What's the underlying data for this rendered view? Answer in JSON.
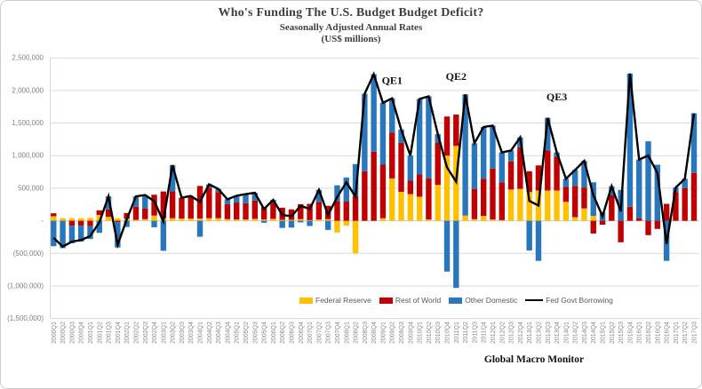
{
  "header": {
    "title": "Who's Funding The U.S. Budget Budget Deficit?",
    "subtitle": "Seasonally Adjusted Annual Rates",
    "units": "(US$ millions)"
  },
  "footer": {
    "credit": "Global Macro Monitor"
  },
  "chart_data": {
    "type": "bar",
    "stacked": true,
    "grid": true,
    "legend_position": "bottom-center",
    "ylim": [
      -1500000,
      2500000
    ],
    "ytick_step": 500000,
    "ytick_labels": [
      "2,500,000",
      "2,000,000",
      "1,500,000",
      "1,000,000",
      "500,000",
      "-",
      "(500,000)",
      "(1,000,000)",
      "(1,500,000)"
    ],
    "categories": [
      "2000Q1",
      "2000Q2",
      "2000Q3",
      "2000Q4",
      "2001Q1",
      "2001Q2",
      "2001Q3",
      "2001Q4",
      "2002Q1",
      "2002Q2",
      "2002Q3",
      "2002Q4",
      "2003Q1",
      "2003Q2",
      "2003Q3",
      "2003Q4",
      "2004Q1",
      "2004Q2",
      "2004Q3",
      "2004Q4",
      "2005Q1",
      "2005Q2",
      "2005Q3",
      "2005Q4",
      "2006Q1",
      "2006Q2",
      "2006Q3",
      "2006Q4",
      "2007Q1",
      "2007Q2",
      "2007Q3",
      "2007Q4",
      "2008Q1",
      "2008Q2",
      "2008Q3",
      "2008Q4",
      "2009Q1",
      "2009Q2",
      "2009Q3",
      "2009Q4",
      "2010Q1",
      "2010Q2",
      "2010Q3",
      "2010Q4",
      "2011Q1",
      "2011Q2",
      "2011Q3",
      "2011Q4",
      "2012Q1",
      "2012Q2",
      "2012Q3",
      "2012Q4",
      "2013Q1",
      "2013Q2",
      "2013Q3",
      "2013Q4",
      "2014Q1",
      "2014Q2",
      "2014Q3",
      "2014Q4",
      "2015Q1",
      "2015Q2",
      "2015Q3",
      "2015Q4",
      "2016Q1",
      "2016Q2",
      "2016Q3",
      "2016Q4",
      "2017Q1",
      "2017Q2",
      "2017Q3"
    ],
    "series": [
      {
        "name": "Federal Reserve",
        "color": "#FFC000",
        "values": [
          70000,
          40000,
          40000,
          40000,
          45000,
          90000,
          60000,
          40000,
          30000,
          15000,
          25000,
          80000,
          40000,
          40000,
          35000,
          35000,
          35000,
          40000,
          40000,
          25000,
          20000,
          20000,
          30000,
          20000,
          30000,
          15000,
          15000,
          25000,
          10000,
          20000,
          25000,
          -180000,
          -75000,
          -500000,
          0,
          0,
          40000,
          650000,
          445000,
          410000,
          370000,
          20000,
          550000,
          1000000,
          1150000,
          80000,
          25000,
          75000,
          20000,
          10000,
          480000,
          490000,
          440000,
          465000,
          465000,
          465000,
          290000,
          55000,
          190000,
          75000,
          0,
          0,
          0,
          0,
          0,
          0,
          0,
          0,
          0,
          0,
          0
        ]
      },
      {
        "name": "Rest of World",
        "color": "#C00000",
        "values": [
          45000,
          0,
          -75000,
          -75000,
          -80000,
          70000,
          115000,
          -20000,
          90000,
          200000,
          165000,
          320000,
          410000,
          410000,
          320000,
          340000,
          500000,
          470000,
          400000,
          230000,
          260000,
          250000,
          280000,
          190000,
          250000,
          185000,
          160000,
          230000,
          250000,
          270000,
          205000,
          300000,
          295000,
          380000,
          760000,
          1060000,
          820000,
          705000,
          750000,
          205000,
          340000,
          630000,
          650000,
          600000,
          480000,
          0,
          465000,
          570000,
          780000,
          580000,
          430000,
          640000,
          320000,
          385000,
          615000,
          520000,
          230000,
          480000,
          320000,
          -195000,
          -60000,
          390000,
          -330000,
          215000,
          40000,
          -220000,
          -125000,
          260000,
          440000,
          500000,
          735000
        ]
      },
      {
        "name": "Other Domestic",
        "color": "#2877BC",
        "values": [
          -390000,
          -420000,
          -270000,
          -245000,
          -200000,
          -185000,
          200000,
          -390000,
          -95000,
          160000,
          205000,
          -100000,
          -460000,
          405000,
          0,
          5000,
          -245000,
          50000,
          50000,
          75000,
          105000,
          140000,
          120000,
          -30000,
          40000,
          -110000,
          -105000,
          -25000,
          -80000,
          185000,
          -140000,
          245000,
          370000,
          490000,
          1190000,
          1190000,
          950000,
          525000,
          205000,
          385000,
          1160000,
          1260000,
          130000,
          -780000,
          -1030000,
          1860000,
          700000,
          795000,
          660000,
          460000,
          170000,
          150000,
          -455000,
          -615000,
          500000,
          65000,
          125000,
          245000,
          410000,
          515000,
          130000,
          140000,
          475000,
          2045000,
          900000,
          1220000,
          860000,
          -615000,
          70000,
          145000,
          915000
        ]
      }
    ],
    "line_series": {
      "name": "Fed Govt Borrowing",
      "color": "#000000",
      "values": [
        -260000,
        -395000,
        -320000,
        -295000,
        -235000,
        -25000,
        375000,
        -370000,
        25000,
        375000,
        395000,
        300000,
        -10000,
        855000,
        355000,
        380000,
        290000,
        560000,
        490000,
        330000,
        385000,
        410000,
        430000,
        180000,
        320000,
        90000,
        70000,
        230000,
        180000,
        475000,
        90000,
        365000,
        590000,
        370000,
        1950000,
        2250000,
        1810000,
        1880000,
        1400000,
        1000000,
        1870000,
        1910000,
        1330000,
        820000,
        600000,
        1940000,
        1190000,
        1440000,
        1460000,
        1050000,
        1080000,
        1280000,
        305000,
        235000,
        1580000,
        1050000,
        645000,
        780000,
        920000,
        395000,
        70000,
        530000,
        145000,
        2260000,
        940000,
        1000000,
        735000,
        -355000,
        510000,
        645000,
        1650000
      ]
    },
    "annotations": [
      {
        "label": "QE1",
        "category": "2009Q2",
        "value": 2100000
      },
      {
        "label": "QE2",
        "category": "2011Q1",
        "value": 2160000
      },
      {
        "label": "QE3",
        "category": "2013Q4",
        "value": 1850000
      }
    ]
  }
}
